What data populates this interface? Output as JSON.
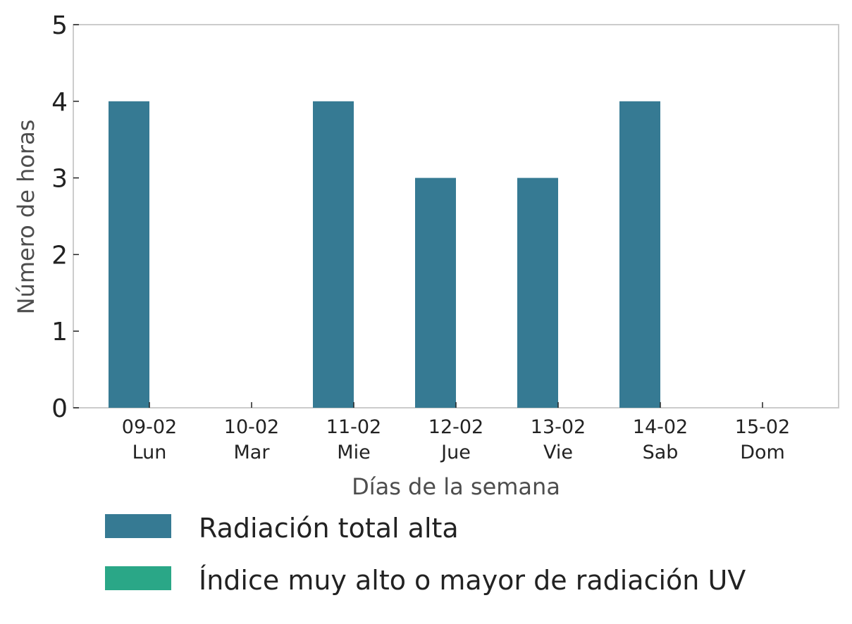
{
  "chart_data": {
    "type": "bar",
    "xlabel": "Días de la semana",
    "ylabel": "Número de horas",
    "ylim": [
      0,
      5
    ],
    "yticks": [
      "0",
      "1",
      "2",
      "3",
      "4",
      "5"
    ],
    "categories": [
      {
        "date": "09-02",
        "day": "Lun"
      },
      {
        "date": "10-02",
        "day": "Mar"
      },
      {
        "date": "11-02",
        "day": "Mie"
      },
      {
        "date": "12-02",
        "day": "Jue"
      },
      {
        "date": "13-02",
        "day": "Vie"
      },
      {
        "date": "14-02",
        "day": "Sab"
      },
      {
        "date": "15-02",
        "day": "Dom"
      }
    ],
    "series": [
      {
        "name": "Radiación total alta",
        "color": "#367a93",
        "values": [
          4,
          0,
          4,
          3,
          3,
          4,
          0
        ]
      },
      {
        "name": "Índice muy alto o mayor de radiación UV",
        "color": "#2aa787",
        "values": [
          0,
          0,
          0,
          0,
          0,
          0,
          0
        ]
      }
    ],
    "grid": false,
    "legend_position": "bottom-left"
  }
}
